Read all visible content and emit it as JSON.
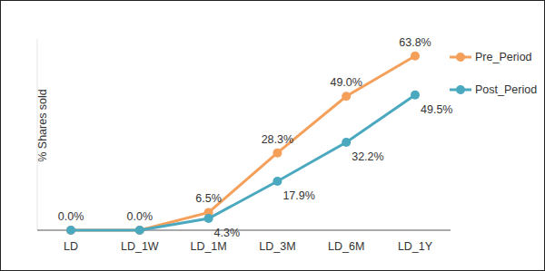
{
  "chart_data": {
    "type": "line",
    "y_label": "% Shares sold",
    "categories": [
      "LD",
      "LD_1W",
      "LD_1M",
      "LD_3M",
      "LD_6M",
      "LD_1Y"
    ],
    "series": [
      {
        "name": "Pre_Period",
        "color": "#f5a05a",
        "marker": "circle",
        "values": [
          0.0,
          0.0,
          6.5,
          28.3,
          49.0,
          63.8
        ],
        "value_labels": [
          "0.0%",
          "0.0%",
          "6.5%",
          "28.3%",
          "49.0%",
          "63.8%"
        ]
      },
      {
        "name": "Post_Period",
        "color": "#4aa8bf",
        "marker": "circle",
        "values": [
          0.0,
          0.0,
          4.3,
          17.9,
          32.2,
          49.5
        ],
        "value_labels": [
          null,
          null,
          "4.3%",
          "17.9%",
          "32.2%",
          "49.5%"
        ]
      }
    ],
    "ylim": [
      0,
      70
    ],
    "data_labels": true,
    "tick_labels": "x",
    "legend": "upper right",
    "grid": false
  }
}
